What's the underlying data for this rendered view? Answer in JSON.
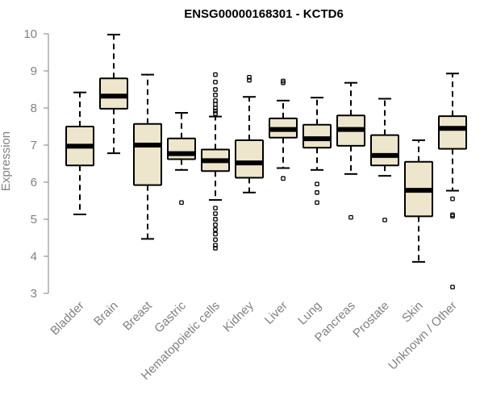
{
  "chart_data": {
    "type": "box",
    "title": "ENSG00000168301 - KCTD6",
    "ylabel": "Expression",
    "xlabel": "",
    "ylim": [
      3,
      10
    ],
    "yticks": [
      3,
      4,
      5,
      6,
      7,
      8,
      9,
      10
    ],
    "grid": false,
    "legend": "none",
    "box_fill": "#ede6cc",
    "categories": [
      "Bladder",
      "Brain",
      "Breast",
      "Gastric",
      "Hematopoietic cells",
      "Kidney",
      "Liver",
      "Lung",
      "Pancreas",
      "Prostate",
      "Skin",
      "Unknown / Other"
    ],
    "boxes": [
      {
        "q1": 6.45,
        "median": 6.97,
        "q3": 7.5,
        "whisker_low": 5.13,
        "whisker_high": 8.42,
        "outliers": []
      },
      {
        "q1": 7.98,
        "median": 8.32,
        "q3": 8.8,
        "whisker_low": 6.78,
        "whisker_high": 9.98,
        "outliers": []
      },
      {
        "q1": 5.92,
        "median": 7.0,
        "q3": 7.57,
        "whisker_low": 4.47,
        "whisker_high": 8.9,
        "outliers": []
      },
      {
        "q1": 6.62,
        "median": 6.77,
        "q3": 7.18,
        "whisker_low": 6.33,
        "whisker_high": 7.87,
        "outliers": [
          5.45
        ]
      },
      {
        "q1": 6.3,
        "median": 6.58,
        "q3": 6.88,
        "whisker_low": 5.52,
        "whisker_high": 7.77,
        "outliers": [
          8.9,
          8.7,
          8.5,
          8.35,
          8.2,
          8.1,
          8.0,
          7.92,
          7.85,
          5.3,
          5.15,
          5.0,
          4.85,
          4.72,
          4.6,
          4.45,
          4.3,
          4.22
        ]
      },
      {
        "q1": 6.12,
        "median": 6.52,
        "q3": 7.13,
        "whisker_low": 5.72,
        "whisker_high": 8.3,
        "outliers": [
          8.83,
          8.75
        ]
      },
      {
        "q1": 7.2,
        "median": 7.42,
        "q3": 7.72,
        "whisker_low": 6.38,
        "whisker_high": 8.2,
        "outliers": [
          8.73,
          8.68,
          6.1
        ]
      },
      {
        "q1": 6.93,
        "median": 7.17,
        "q3": 7.55,
        "whisker_low": 6.33,
        "whisker_high": 8.28,
        "outliers": [
          5.95,
          5.72,
          5.45
        ]
      },
      {
        "q1": 6.98,
        "median": 7.42,
        "q3": 7.8,
        "whisker_low": 6.22,
        "whisker_high": 8.68,
        "outliers": [
          5.05
        ]
      },
      {
        "q1": 6.45,
        "median": 6.72,
        "q3": 7.27,
        "whisker_low": 6.17,
        "whisker_high": 8.25,
        "outliers": [
          4.98
        ]
      },
      {
        "q1": 5.08,
        "median": 5.78,
        "q3": 6.55,
        "whisker_low": 3.85,
        "whisker_high": 7.13,
        "outliers": []
      },
      {
        "q1": 6.9,
        "median": 7.45,
        "q3": 7.78,
        "whisker_low": 5.77,
        "whisker_high": 8.93,
        "outliers": [
          5.55,
          5.12,
          5.08,
          3.17
        ]
      }
    ]
  }
}
